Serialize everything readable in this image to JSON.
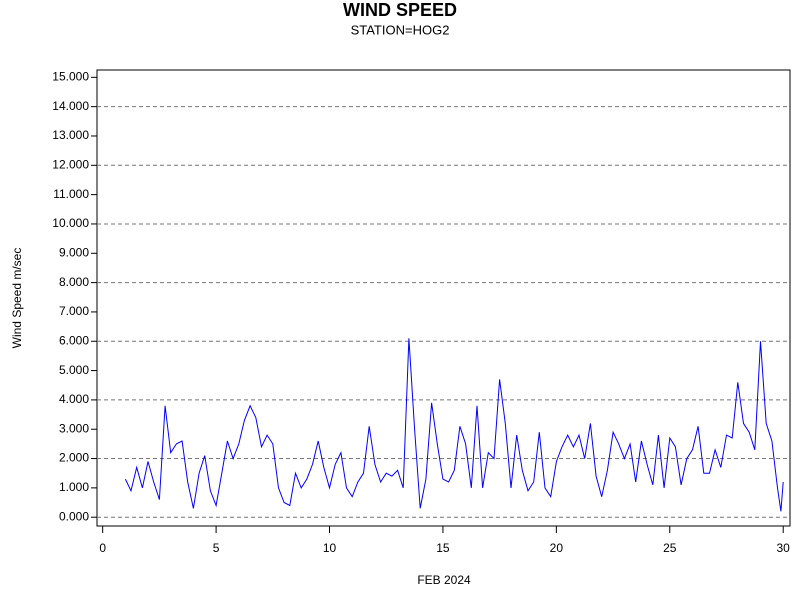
{
  "chart_data": {
    "type": "line",
    "title": "WIND SPEED",
    "subtitle": "STATION=HOG2",
    "x_label": "FEB 2024",
    "y_label": "Wind Speed m/sec",
    "xlim": [
      -0.25,
      30.3
    ],
    "ylim": [
      -0.3,
      15.25
    ],
    "xticks": [
      0,
      5,
      10,
      15,
      20,
      25,
      30
    ],
    "yticks": [
      {
        "value": 0,
        "label": "0.000"
      },
      {
        "value": 1,
        "label": "1.000"
      },
      {
        "value": 2,
        "label": "2.000"
      },
      {
        "value": 3,
        "label": "3.000"
      },
      {
        "value": 4,
        "label": "4.000"
      },
      {
        "value": 5,
        "label": "5.000"
      },
      {
        "value": 6,
        "label": "6.000"
      },
      {
        "value": 7,
        "label": "7.000"
      },
      {
        "value": 8,
        "label": "8.000"
      },
      {
        "value": 9,
        "label": "9.000"
      },
      {
        "value": 10,
        "label": "10.000"
      },
      {
        "value": 11,
        "label": "11.000"
      },
      {
        "value": 12,
        "label": "12.000"
      },
      {
        "value": 13,
        "label": "13.000"
      },
      {
        "value": 14,
        "label": "14.000"
      },
      {
        "value": 15,
        "label": "15.000"
      }
    ],
    "grid": true,
    "x": [
      1,
      1.25,
      1.5,
      1.75,
      2,
      2.25,
      2.5,
      2.75,
      3,
      3.25,
      3.5,
      3.75,
      4,
      4.25,
      4.5,
      4.75,
      5,
      5.25,
      5.5,
      5.75,
      6,
      6.25,
      6.5,
      6.75,
      7,
      7.25,
      7.5,
      7.75,
      8,
      8.25,
      8.5,
      8.75,
      9,
      9.25,
      9.5,
      9.75,
      10,
      10.25,
      10.5,
      10.75,
      11,
      11.25,
      11.5,
      11.75,
      12,
      12.25,
      12.5,
      12.75,
      13,
      13.25,
      13.5,
      13.75,
      14,
      14.25,
      14.5,
      14.75,
      15,
      15.25,
      15.5,
      15.75,
      16,
      16.25,
      16.5,
      16.75,
      17,
      17.25,
      17.5,
      17.75,
      18,
      18.25,
      18.5,
      18.75,
      19,
      19.25,
      19.5,
      19.75,
      20,
      20.25,
      20.5,
      20.75,
      21,
      21.25,
      21.5,
      21.75,
      22,
      22.25,
      22.5,
      22.75,
      23,
      23.25,
      23.5,
      23.75,
      24,
      24.25,
      24.5,
      24.75,
      25,
      25.25,
      25.5,
      25.75,
      26,
      26.25,
      26.5,
      26.75,
      27,
      27.25,
      27.5,
      27.75,
      28,
      28.25,
      28.5,
      28.75,
      29,
      29.25,
      29.5,
      29.75,
      29.9,
      30
    ],
    "series": [
      {
        "color": "#0000ff",
        "values": [
          1.3,
          0.9,
          1.7,
          1.0,
          1.9,
          1.2,
          0.6,
          3.8,
          2.2,
          2.5,
          2.6,
          1.2,
          0.3,
          1.5,
          2.1,
          0.9,
          0.4,
          1.5,
          2.6,
          2.0,
          2.5,
          3.3,
          3.8,
          3.4,
          2.4,
          2.8,
          2.5,
          1.0,
          0.5,
          0.4,
          1.5,
          1.0,
          1.3,
          1.8,
          2.6,
          1.7,
          1.0,
          1.8,
          2.2,
          1.0,
          0.7,
          1.2,
          1.5,
          3.1,
          1.8,
          1.2,
          1.5,
          1.4,
          1.6,
          1.0,
          6.1,
          3.0,
          0.3,
          1.3,
          3.9,
          2.5,
          1.3,
          1.2,
          1.6,
          3.1,
          2.5,
          1.0,
          3.8,
          1.0,
          2.2,
          2.0,
          4.7,
          3.2,
          1.0,
          2.8,
          1.6,
          0.9,
          1.2,
          2.9,
          1.0,
          0.7,
          1.9,
          2.4,
          2.8,
          2.4,
          2.8,
          2.0,
          3.2,
          1.4,
          0.7,
          1.6,
          2.9,
          2.5,
          2.0,
          2.5,
          1.2,
          2.6,
          1.8,
          1.1,
          2.8,
          1.0,
          2.7,
          2.4,
          1.1,
          2.0,
          2.3,
          3.1,
          1.5,
          1.5,
          2.3,
          1.7,
          2.8,
          2.7,
          4.6,
          3.2,
          2.9,
          2.3,
          6.0,
          3.2,
          2.6,
          1.0,
          0.2,
          1.2
        ]
      }
    ]
  }
}
